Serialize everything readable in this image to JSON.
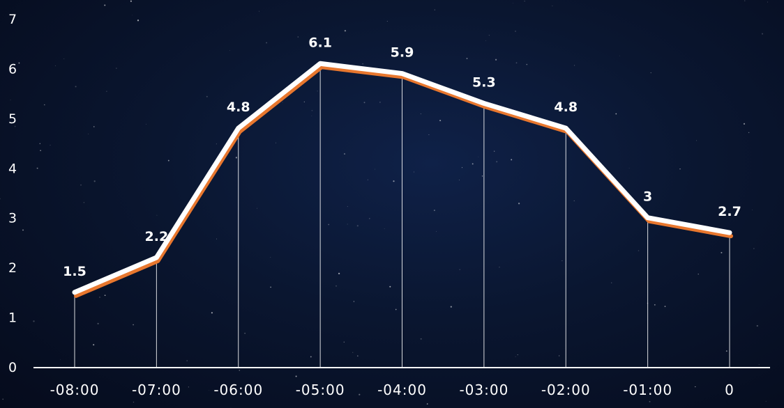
{
  "chart_data": {
    "type": "line",
    "title": "",
    "xlabel": "",
    "ylabel": "",
    "categories": [
      "-08:00",
      "-07:00",
      "-06:00",
      "-05:00",
      "-04:00",
      "-03:00",
      "-02:00",
      "-01:00",
      "0"
    ],
    "series": [
      {
        "values": [
          1.5,
          2.2,
          4.8,
          6.1,
          5.9,
          5.3,
          4.8,
          3,
          2.7
        ]
      }
    ],
    "data_labels": [
      "1.5",
      "2.2",
      "4.8",
      "6.1",
      "5.9",
      "5.3",
      "4.8",
      "3",
      "2.7"
    ],
    "y_ticks": [
      "0",
      "1",
      "2",
      "3",
      "4",
      "5",
      "6",
      "7"
    ],
    "ylim": [
      0,
      7
    ],
    "grid": false,
    "drop_lines": true,
    "colors": {
      "line": "#ffffff",
      "shadow": "#e8772e",
      "drop_line": "#ffffff",
      "axis": "#ffffff"
    }
  }
}
